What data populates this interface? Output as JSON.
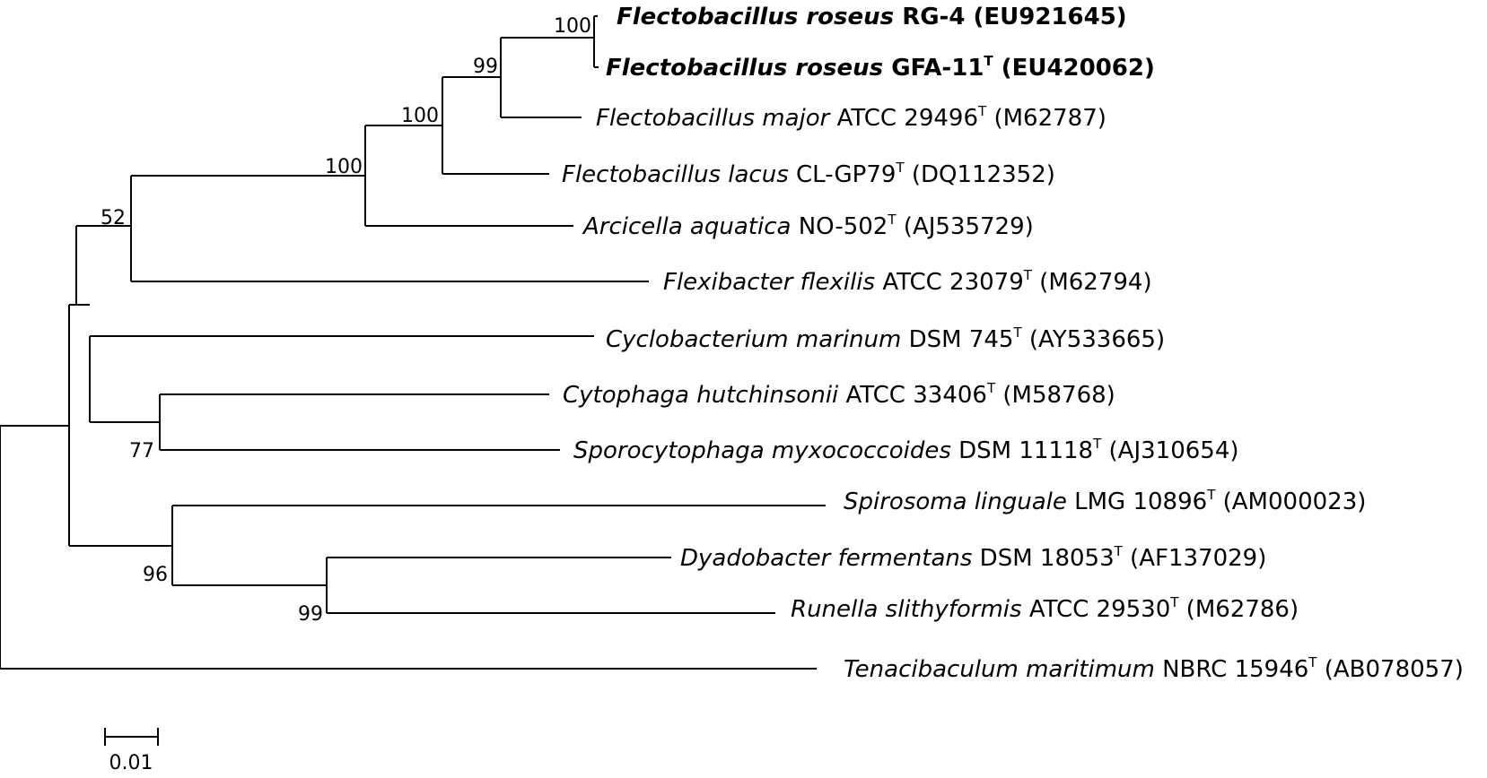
{
  "taxa": [
    {
      "species": "Flectobacillus roseus",
      "strain": "RG-4",
      "type_strain": false,
      "accession": "(EU921645)",
      "bold": true
    },
    {
      "species": "Flectobacillus roseus",
      "strain": "GFA-11",
      "type_strain": true,
      "accession": "(EU420062)",
      "bold": true
    },
    {
      "species": "Flectobacillus major",
      "strain": "ATCC 29496",
      "type_strain": true,
      "accession": "(M62787)",
      "bold": false
    },
    {
      "species": "Flectobacillus lacus",
      "strain": "CL-GP79",
      "type_strain": true,
      "accession": "(DQ112352)",
      "bold": false
    },
    {
      "species": "Arcicella aquatica",
      "strain": "NO-502",
      "type_strain": true,
      "accession": "(AJ535729)",
      "bold": false
    },
    {
      "species": "Flexibacter flexilis",
      "strain": "ATCC 23079",
      "type_strain": true,
      "accession": "(M62794)",
      "bold": false
    },
    {
      "species": "Cyclobacterium marinum",
      "strain": "DSM 745",
      "type_strain": true,
      "accession": "(AY533665)",
      "bold": false
    },
    {
      "species": "Cytophaga hutchinsonii",
      "strain": "ATCC 33406",
      "type_strain": true,
      "accession": "(M58768)",
      "bold": false
    },
    {
      "species": "Sporocytophaga myxococcoides",
      "strain": "DSM 11118",
      "type_strain": true,
      "accession": "(AJ310654)",
      "bold": false
    },
    {
      "species": "Spirosoma linguale",
      "strain": "LMG 10896",
      "type_strain": true,
      "accession": "(AM000023)",
      "bold": false
    },
    {
      "species": "Dyadobacter fermentans",
      "strain": "DSM 18053",
      "type_strain": true,
      "accession": "(AF137029)",
      "bold": false
    },
    {
      "species": "Runella slithyformis",
      "strain": "ATCC 29530",
      "type_strain": true,
      "accession": "(M62786)",
      "bold": false
    },
    {
      "species": "Tenacibaculum maritimum",
      "strain": "NBRC 15946",
      "type_strain": true,
      "accession": "(AB078057)",
      "bold": false
    }
  ],
  "type_strain_marker": "T",
  "bootstrap": [
    "100",
    "99",
    "100",
    "100",
    "52",
    "77",
    "96",
    "99"
  ],
  "scale_bar": {
    "label": "0.01"
  }
}
